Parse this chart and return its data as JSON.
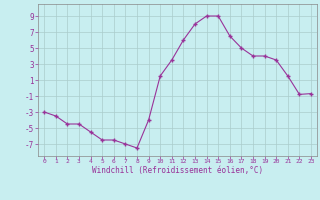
{
  "x": [
    0,
    1,
    2,
    3,
    4,
    5,
    6,
    7,
    8,
    9,
    10,
    11,
    12,
    13,
    14,
    15,
    16,
    17,
    18,
    19,
    20,
    21,
    22,
    23
  ],
  "y": [
    -3,
    -3.5,
    -4.5,
    -4.5,
    -5.5,
    -6.5,
    -6.5,
    -7,
    -7.5,
    -4,
    1.5,
    3.5,
    6,
    8,
    9,
    9,
    6.5,
    5,
    4,
    4,
    3.5,
    1.5,
    -0.8,
    -0.7
  ],
  "line_color": "#993399",
  "marker": "+",
  "bg_color": "#c8eef0",
  "grid_color": "#aacccc",
  "xlabel": "Windchill (Refroidissement éolien,°C)",
  "xlabel_color": "#993399",
  "xlim": [
    -0.5,
    23.5
  ],
  "ylim": [
    -8.5,
    10.5
  ],
  "yticks": [
    -7,
    -5,
    -3,
    -1,
    1,
    3,
    5,
    7,
    9
  ],
  "xticks": [
    0,
    1,
    2,
    3,
    4,
    5,
    6,
    7,
    8,
    9,
    10,
    11,
    12,
    13,
    14,
    15,
    16,
    17,
    18,
    19,
    20,
    21,
    22,
    23
  ],
  "tick_color": "#993399",
  "spine_color": "#888888",
  "figsize": [
    3.2,
    2.0
  ],
  "dpi": 100
}
